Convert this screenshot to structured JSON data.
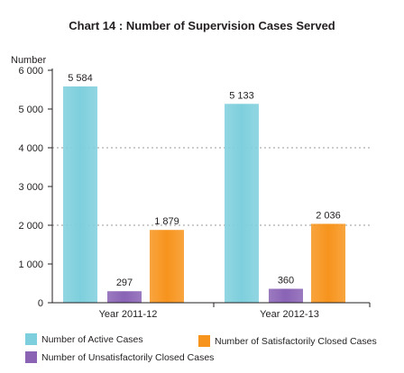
{
  "chart_data": {
    "type": "bar",
    "title": "Chart 14 : Number of Supervision Cases Served",
    "ylabel": "Number",
    "xlabel": "",
    "ylim": [
      0,
      6000
    ],
    "yticks": [
      0,
      1000,
      2000,
      3000,
      4000,
      5000,
      6000
    ],
    "ytick_labels": [
      "0",
      "1 000",
      "2 000",
      "3 000",
      "4 000",
      "5 000",
      "6 000"
    ],
    "grid": "horizontal dotted at 2 000 and 4 000",
    "categories": [
      "Year 2011-12",
      "Year 2012-13"
    ],
    "series": [
      {
        "name": "Number of Active Cases",
        "color": "#7ecfdd",
        "values": [
          5584,
          5133
        ],
        "labels": [
          "5 584",
          "5 133"
        ]
      },
      {
        "name": "Number of Unsatisfactorily Closed Cases",
        "color": "#8a63b5",
        "values": [
          297,
          360
        ],
        "labels": [
          "297",
          "360"
        ]
      },
      {
        "name": "Number of Satisfactorily Closed Cases",
        "color": "#f7941d",
        "values": [
          1879,
          2036
        ],
        "labels": [
          "1 879",
          "2 036"
        ]
      }
    ],
    "legend": "bottom"
  }
}
